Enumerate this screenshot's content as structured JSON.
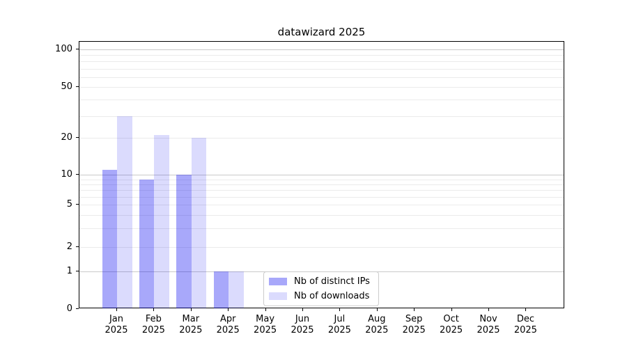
{
  "chart_data": {
    "type": "bar",
    "title": "datawizard 2025",
    "categories": [
      "Jan",
      "Feb",
      "Mar",
      "Apr",
      "May",
      "Jun",
      "Jul",
      "Aug",
      "Sep",
      "Oct",
      "Nov",
      "Dec"
    ],
    "category_year": "2025",
    "series": [
      {
        "name": "Nb of distinct IPs",
        "color": "rgba(0,0,240,0.34)",
        "color_hex_on_white": "#a8a8f8",
        "values": [
          11,
          9,
          10,
          1,
          0,
          0,
          0,
          0,
          0,
          0,
          0,
          0
        ]
      },
      {
        "name": "Nb of downloads",
        "color": "rgba(0,0,240,0.14)",
        "color_hex_on_white": "#dcdcfb",
        "values": [
          30,
          21,
          20,
          1,
          0,
          0,
          0,
          0,
          0,
          0,
          0,
          0
        ]
      }
    ],
    "xlabel": "",
    "ylabel": "",
    "yscale": "symlog",
    "y_ticks": [
      0,
      1,
      2,
      5,
      10,
      20,
      50,
      100
    ],
    "y_major_gridlines": [
      1,
      10,
      100
    ],
    "y_minor_gridlines": [
      2,
      3,
      4,
      5,
      6,
      7,
      8,
      9,
      20,
      30,
      40,
      50,
      60,
      70,
      80,
      90
    ],
    "ylim": [
      0,
      115
    ],
    "grid": "horizontal",
    "legend_position": "lower center",
    "grid_major_color": "#c9c9c9",
    "grid_minor_color": "#ebebeb",
    "axis_color": "#000000"
  }
}
